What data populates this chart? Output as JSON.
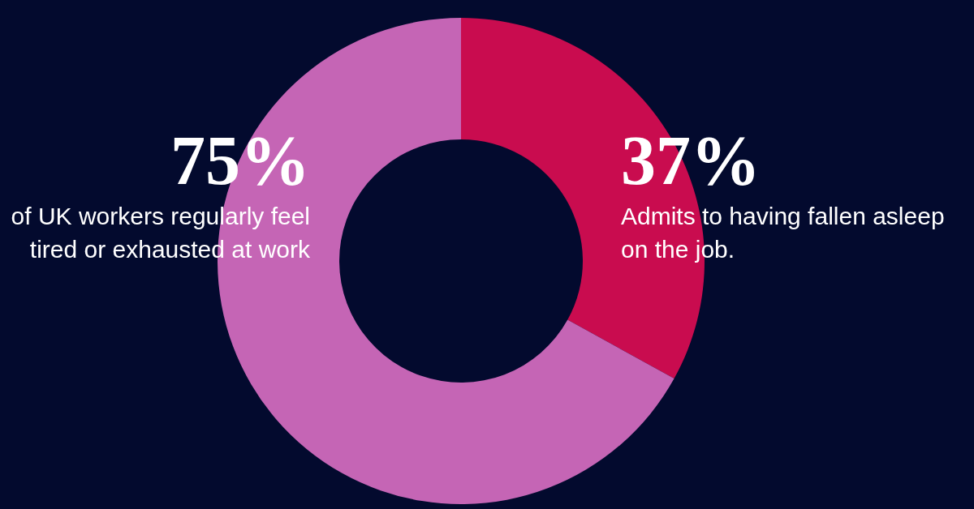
{
  "chart_data": {
    "type": "donut",
    "categories": [
      "Admits to having fallen asleep on the job.",
      "of UK workers regularly feel tired or exhausted at work"
    ],
    "values": [
      37,
      75
    ],
    "colors": [
      "#c90c4f",
      "#c565b5"
    ],
    "value_labels": [
      "37%",
      "75%"
    ]
  }
}
